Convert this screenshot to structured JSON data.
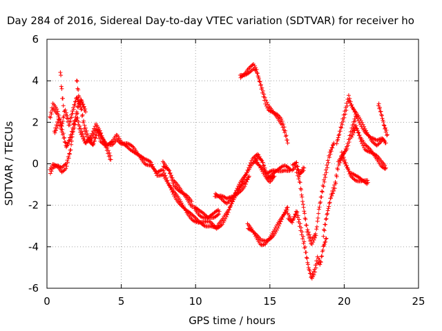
{
  "chart_data": {
    "type": "scatter",
    "title": "Day 284 of 2016, Sidereal Day-to-day VTEC variation (SDTVAR) for receiver ho",
    "xlabel": "GPS time / hours",
    "ylabel": "SDTVAR / TECUs",
    "xlim": [
      0,
      25
    ],
    "ylim": [
      -6,
      6
    ],
    "x_ticks": [
      "0",
      "5",
      "10",
      "15",
      "20",
      "25"
    ],
    "y_ticks": [
      "-6",
      "-4",
      "-2",
      "0",
      "2",
      "4",
      "6"
    ],
    "grid": true,
    "marker": "+",
    "series_color": "#ff0000",
    "tracks": [
      [
        [
          0.2,
          2.2
        ],
        [
          0.4,
          2.8
        ],
        [
          0.7,
          2.5
        ],
        [
          1.0,
          1.8
        ],
        [
          1.2,
          2.6
        ],
        [
          1.5,
          1.9
        ],
        [
          1.8,
          2.7
        ],
        [
          2.0,
          3.2
        ],
        [
          2.3,
          2.7
        ],
        [
          2.5,
          1.8
        ],
        [
          2.8,
          1.2
        ],
        [
          3.1,
          0.9
        ],
        [
          3.4,
          1.6
        ],
        [
          3.6,
          1.2
        ],
        [
          4.0,
          0.9
        ],
        [
          4.4,
          1.0
        ],
        [
          4.7,
          1.3
        ],
        [
          5.0,
          1.0
        ],
        [
          5.4,
          0.9
        ],
        [
          5.8,
          0.7
        ],
        [
          6.2,
          0.4
        ],
        [
          6.6,
          0.1
        ],
        [
          7.0,
          0.0
        ],
        [
          7.4,
          -0.5
        ],
        [
          7.8,
          -0.4
        ],
        [
          8.2,
          -1.0
        ],
        [
          8.6,
          -1.5
        ],
        [
          9.0,
          -1.9
        ],
        [
          9.4,
          -2.3
        ],
        [
          9.8,
          -2.6
        ],
        [
          10.2,
          -2.8
        ],
        [
          10.6,
          -2.9
        ],
        [
          11.0,
          -2.9
        ],
        [
          11.4,
          -3.1
        ],
        [
          11.8,
          -2.8
        ],
        [
          12.2,
          -2.3
        ],
        [
          12.6,
          -1.6
        ],
        [
          13.0,
          -1.0
        ],
        [
          13.4,
          -0.5
        ],
        [
          13.8,
          0.1
        ],
        [
          14.2,
          0.4
        ],
        [
          14.5,
          0.1
        ],
        [
          14.8,
          -0.6
        ],
        [
          15.2,
          -0.4
        ],
        [
          15.6,
          -0.3
        ],
        [
          16.0,
          -0.2
        ],
        [
          16.4,
          -0.3
        ]
      ],
      [
        [
          0.2,
          -0.4
        ],
        [
          0.4,
          -0.1
        ],
        [
          0.7,
          -0.1
        ],
        [
          1.0,
          -0.3
        ],
        [
          1.3,
          -0.1
        ],
        [
          1.6,
          0.7
        ],
        [
          1.8,
          1.9
        ],
        [
          2.0,
          2.3
        ],
        [
          2.2,
          1.7
        ],
        [
          2.6,
          1.0
        ],
        [
          3.0,
          1.3
        ],
        [
          3.3,
          1.8
        ],
        [
          3.6,
          1.5
        ],
        [
          4.0,
          0.8
        ],
        [
          4.3,
          0.2
        ]
      ],
      [
        [
          0.5,
          1.5
        ],
        [
          0.8,
          2.1
        ],
        [
          1.1,
          1.4
        ],
        [
          1.3,
          0.8
        ],
        [
          1.6,
          1.3
        ],
        [
          1.9,
          2.0
        ],
        [
          2.1,
          2.8
        ],
        [
          2.3,
          3.1
        ],
        [
          2.6,
          2.5
        ]
      ],
      [
        [
          7.8,
          0.0
        ],
        [
          8.2,
          -0.3
        ],
        [
          8.5,
          -0.9
        ],
        [
          9.0,
          -1.3
        ],
        [
          9.4,
          -1.6
        ],
        [
          9.8,
          -2.0
        ]
      ],
      [
        [
          9.9,
          -2.1
        ],
        [
          10.3,
          -2.4
        ],
        [
          10.8,
          -2.6
        ],
        [
          11.2,
          -2.5
        ],
        [
          11.6,
          -2.3
        ]
      ],
      [
        [
          11.3,
          -1.5
        ],
        [
          11.7,
          -1.6
        ],
        [
          12.1,
          -1.8
        ],
        [
          12.5,
          -1.6
        ],
        [
          12.9,
          -1.3
        ],
        [
          13.3,
          -1.0
        ],
        [
          13.6,
          -0.6
        ]
      ],
      [
        [
          13.0,
          4.2
        ],
        [
          13.3,
          4.3
        ],
        [
          13.6,
          4.5
        ],
        [
          13.9,
          4.7
        ],
        [
          14.1,
          4.5
        ],
        [
          14.3,
          4.0
        ],
        [
          14.5,
          3.5
        ],
        [
          14.7,
          3.0
        ],
        [
          14.9,
          2.7
        ],
        [
          15.2,
          2.5
        ],
        [
          15.5,
          2.3
        ],
        [
          15.8,
          2.0
        ],
        [
          16.0,
          1.6
        ],
        [
          16.2,
          1.0
        ]
      ],
      [
        [
          13.5,
          -3.0
        ],
        [
          13.8,
          -3.2
        ],
        [
          14.1,
          -3.5
        ],
        [
          14.4,
          -3.8
        ],
        [
          14.7,
          -3.8
        ],
        [
          15.0,
          -3.6
        ],
        [
          15.3,
          -3.3
        ],
        [
          15.6,
          -2.9
        ],
        [
          15.9,
          -2.5
        ],
        [
          16.2,
          -2.1
        ]
      ],
      [
        [
          16.2,
          -2.5
        ],
        [
          16.5,
          -2.8
        ],
        [
          16.8,
          -2.3
        ],
        [
          17.0,
          -2.9
        ],
        [
          17.2,
          -3.5
        ],
        [
          17.4,
          -4.2
        ],
        [
          17.6,
          -5.0
        ],
        [
          17.8,
          -5.5
        ],
        [
          18.0,
          -5.2
        ],
        [
          18.2,
          -4.6
        ],
        [
          18.4,
          -4.8
        ],
        [
          18.6,
          -4.0
        ],
        [
          18.8,
          -3.6
        ]
      ],
      [
        [
          16.8,
          -0.3
        ],
        [
          17.0,
          -0.8
        ],
        [
          17.2,
          -1.8
        ],
        [
          17.5,
          -3.2
        ],
        [
          17.8,
          -3.8
        ],
        [
          18.1,
          -3.4
        ],
        [
          18.3,
          -2.2
        ],
        [
          18.6,
          -1.0
        ],
        [
          18.8,
          -0.3
        ],
        [
          19.0,
          0.4
        ],
        [
          19.3,
          1.0
        ]
      ],
      [
        [
          18.6,
          -3.4
        ],
        [
          18.8,
          -2.6
        ],
        [
          19.1,
          -1.6
        ],
        [
          19.4,
          -1.0
        ],
        [
          19.6,
          0.0
        ],
        [
          19.9,
          0.4
        ],
        [
          20.2,
          0.8
        ],
        [
          20.5,
          1.6
        ],
        [
          20.8,
          2.3
        ]
      ],
      [
        [
          19.5,
          1.0
        ],
        [
          19.8,
          1.8
        ],
        [
          20.1,
          2.6
        ],
        [
          20.3,
          3.2
        ],
        [
          20.5,
          2.8
        ],
        [
          20.8,
          2.4
        ],
        [
          21.1,
          2.0
        ],
        [
          21.4,
          1.6
        ],
        [
          21.8,
          1.2
        ],
        [
          22.2,
          1.0
        ],
        [
          22.6,
          1.2
        ],
        [
          22.8,
          1.0
        ]
      ],
      [
        [
          19.8,
          0.5
        ],
        [
          20.1,
          0.0
        ],
        [
          20.4,
          -0.5
        ],
        [
          20.8,
          -0.7
        ],
        [
          21.2,
          -0.8
        ],
        [
          21.6,
          -0.9
        ]
      ],
      [
        [
          20.5,
          1.4
        ],
        [
          20.8,
          1.8
        ],
        [
          21.1,
          1.2
        ],
        [
          21.4,
          0.8
        ],
        [
          21.8,
          0.6
        ],
        [
          22.2,
          0.3
        ],
        [
          22.5,
          0.0
        ],
        [
          22.8,
          -0.2
        ]
      ],
      [
        [
          22.3,
          2.9
        ],
        [
          22.5,
          2.4
        ],
        [
          22.7,
          1.8
        ],
        [
          22.9,
          1.4
        ]
      ],
      [
        [
          0.9,
          4.5
        ],
        [
          1.0,
          3.5
        ],
        [
          1.1,
          2.8
        ]
      ],
      [
        [
          2.0,
          4.1
        ],
        [
          2.1,
          3.5
        ],
        [
          2.2,
          3.0
        ]
      ],
      [
        [
          14.0,
          0.2
        ],
        [
          14.2,
          0.0
        ],
        [
          14.5,
          -0.3
        ],
        [
          14.8,
          -0.6
        ],
        [
          15.0,
          -0.8
        ],
        [
          15.3,
          -0.6
        ]
      ],
      [
        [
          16.5,
          -0.2
        ],
        [
          16.8,
          0.0
        ],
        [
          17.0,
          -0.5
        ],
        [
          17.3,
          -0.2
        ]
      ]
    ]
  }
}
